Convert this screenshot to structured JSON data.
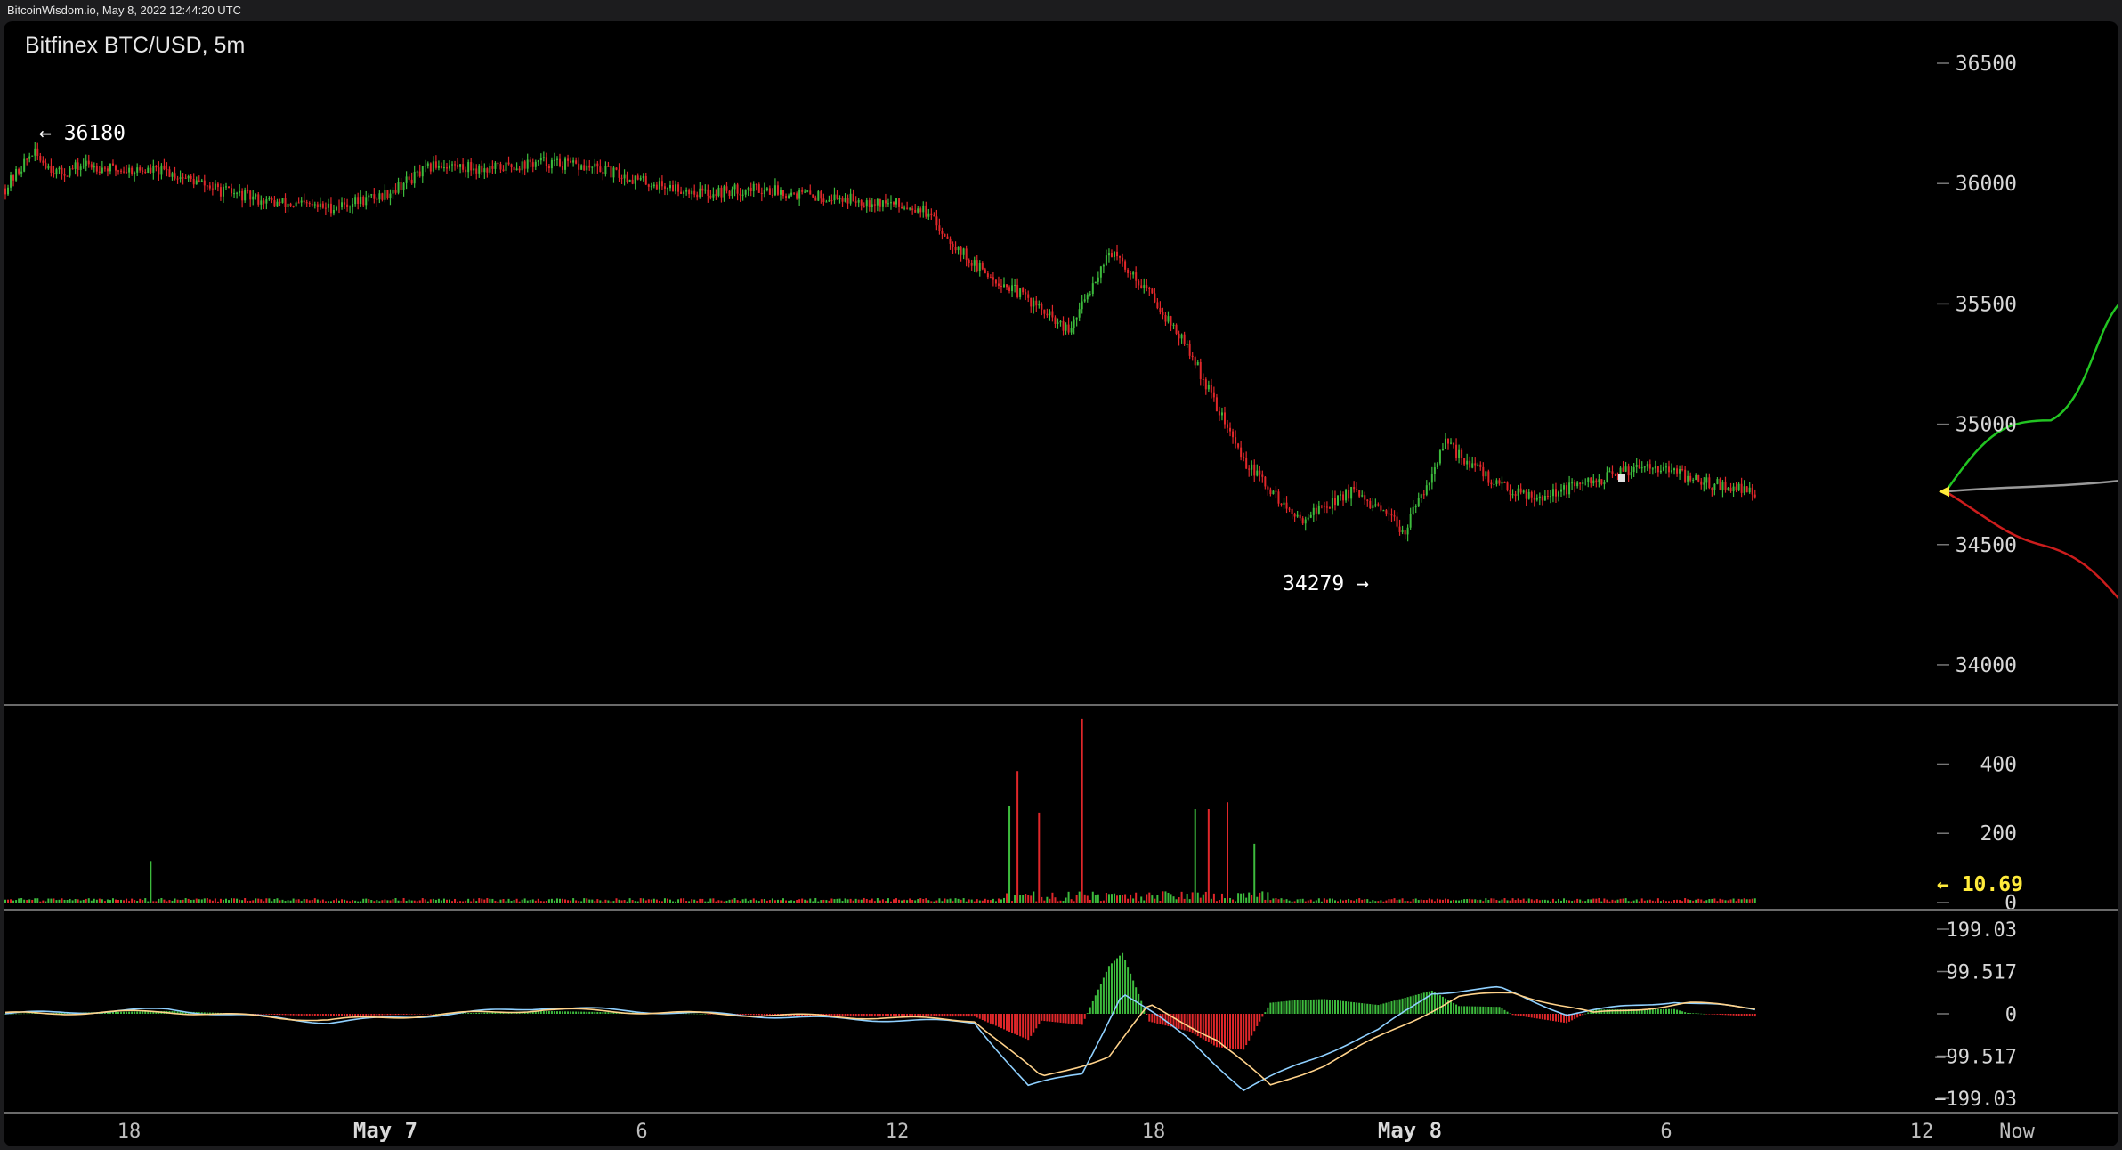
{
  "header": {
    "text": "BitcoinWisdom.io, May 8, 2022 12:44:20 UTC"
  },
  "chart": {
    "title": "Bitfinex BTC/USD, 5m",
    "colors": {
      "up": "#3dbb3d",
      "down": "#e0272a",
      "bg": "#000000",
      "grid": "#6a6a6a",
      "signal_line": "#ffd28a",
      "macd_line": "#8fd0ff",
      "depth_bid": "#22c422",
      "depth_ask": "#cc1d1d",
      "depth_mid": "#9a9a9a",
      "last_volume": "#ffeb3b"
    },
    "annotations": {
      "high": "← 36180",
      "low": "34279 →"
    },
    "volume_last_label": "← 10.69"
  },
  "chart_data": [
    {
      "type": "candlestick",
      "title": "Bitfinex BTC/USD, 5m",
      "y_ticks": [
        "36500",
        "36000",
        "35500",
        "35000",
        "34500",
        "34000"
      ],
      "y_range": [
        33900,
        36600
      ],
      "high": 36180,
      "low": 34279,
      "x_ticks": [
        "18",
        "May 7",
        "6",
        "12",
        "18",
        "May 8",
        "6",
        "12",
        "Now"
      ],
      "price_path": [
        [
          0,
          35980
        ],
        [
          10,
          36130
        ],
        [
          20,
          36040
        ],
        [
          30,
          36080
        ],
        [
          40,
          36060
        ],
        [
          60,
          36050
        ],
        [
          80,
          35970
        ],
        [
          100,
          35920
        ],
        [
          120,
          35900
        ],
        [
          140,
          35950
        ],
        [
          160,
          36080
        ],
        [
          180,
          36060
        ],
        [
          200,
          36090
        ],
        [
          220,
          36060
        ],
        [
          240,
          36000
        ],
        [
          260,
          35960
        ],
        [
          280,
          35980
        ],
        [
          300,
          35950
        ],
        [
          320,
          35930
        ],
        [
          340,
          35900
        ],
        [
          360,
          35660
        ],
        [
          380,
          35520
        ],
        [
          395,
          35380
        ],
        [
          410,
          35720
        ],
        [
          425,
          35550
        ],
        [
          440,
          35300
        ],
        [
          460,
          34850
        ],
        [
          480,
          34600
        ],
        [
          500,
          34720
        ],
        [
          520,
          34560
        ],
        [
          535,
          34920
        ],
        [
          555,
          34740
        ],
        [
          570,
          34700
        ],
        [
          590,
          34760
        ],
        [
          610,
          34840
        ],
        [
          630,
          34760
        ],
        [
          650,
          34720
        ]
      ]
    },
    {
      "type": "bar",
      "title": "Volume",
      "y_ticks": [
        "400",
        "200",
        "0"
      ],
      "y_range": [
        0,
        540
      ],
      "last": 10.69,
      "spikes": [
        [
          54,
          120
        ],
        [
          373,
          280
        ],
        [
          376,
          380
        ],
        [
          384,
          260
        ],
        [
          400,
          530
        ],
        [
          442,
          270
        ],
        [
          447,
          270
        ],
        [
          454,
          290
        ],
        [
          464,
          170
        ]
      ]
    },
    {
      "type": "line",
      "title": "MACD",
      "y_ticks": [
        "199.03",
        "99.517",
        "0",
        "−99.517",
        "−199.03"
      ],
      "y_range": [
        -220,
        220
      ],
      "series": [
        {
          "name": "",
          "points": [
            [
              0,
              0
            ],
            [
              60,
              10
            ],
            [
              120,
              -20
            ],
            [
              200,
              15
            ],
            [
              260,
              0
            ],
            [
              300,
              -10
            ],
            [
              360,
              -20
            ],
            [
              380,
              -170
            ],
            [
              400,
              -140
            ],
            [
              415,
              50
            ],
            [
              440,
              -60
            ],
            [
              460,
              -180
            ],
            [
              480,
              -120
            ],
            [
              510,
              -40
            ],
            [
              530,
              50
            ],
            [
              555,
              60
            ],
            [
              580,
              0
            ],
            [
              620,
              30
            ],
            [
              650,
              10
            ]
          ]
        },
        {
          "name": "",
          "points": [
            [
              0,
              0
            ],
            [
              60,
              5
            ],
            [
              120,
              -15
            ],
            [
              200,
              10
            ],
            [
              260,
              0
            ],
            [
              300,
              -5
            ],
            [
              360,
              -15
            ],
            [
              385,
              -150
            ],
            [
              410,
              -100
            ],
            [
              425,
              20
            ],
            [
              450,
              -60
            ],
            [
              470,
              -170
            ],
            [
              490,
              -120
            ],
            [
              515,
              -40
            ],
            [
              540,
              40
            ],
            [
              560,
              50
            ],
            [
              590,
              0
            ],
            [
              625,
              25
            ],
            [
              650,
              15
            ]
          ]
        }
      ]
    }
  ]
}
